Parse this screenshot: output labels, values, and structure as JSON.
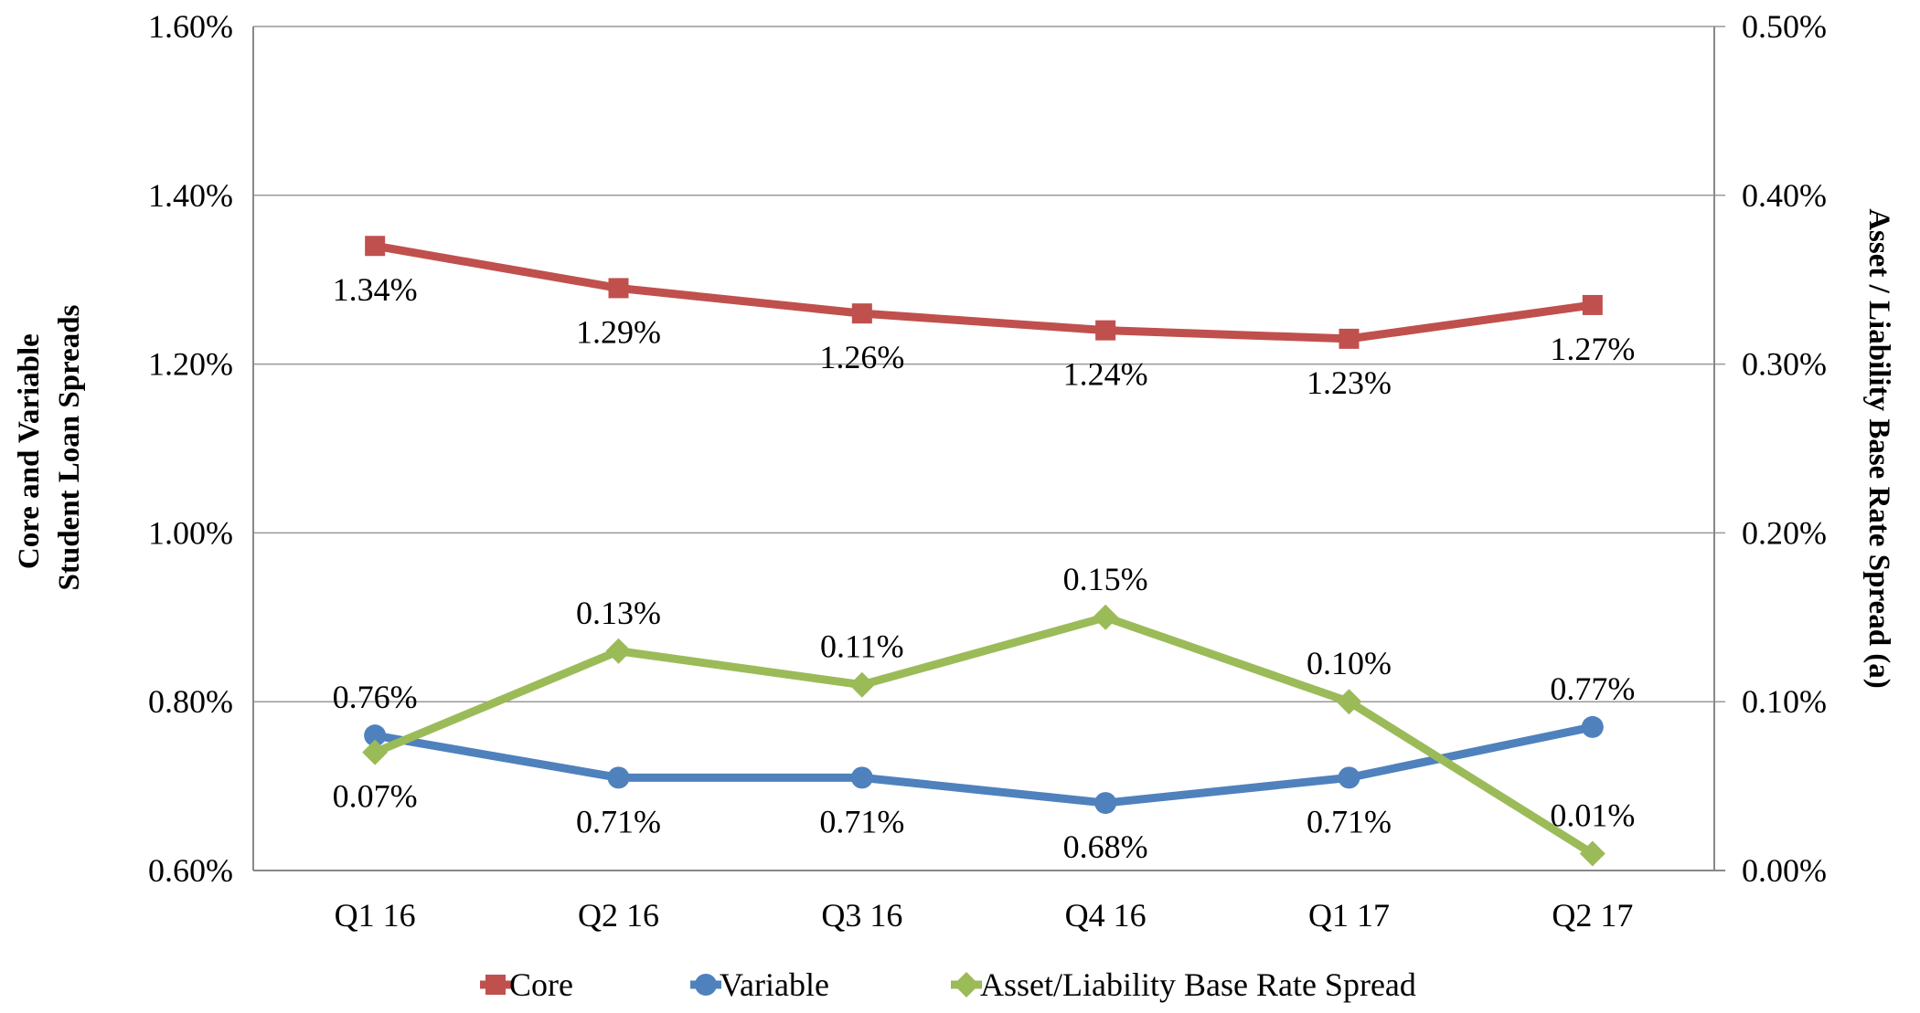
{
  "chart_data": {
    "type": "line",
    "categories": [
      "Q1 16",
      "Q2 16",
      "Q3 16",
      "Q4 16",
      "Q1 17",
      "Q2 17"
    ],
    "y_left": {
      "label_lines": [
        "Core and Variable",
        "Student Loan Spreads"
      ],
      "range": [
        0.6,
        1.6
      ],
      "ticks": [
        "0.60%",
        "0.80%",
        "1.00%",
        "1.20%",
        "1.40%",
        "1.60%"
      ]
    },
    "y_right": {
      "label": "Asset / Liability Base Rate Spread (a)",
      "range": [
        0.0,
        0.5
      ],
      "ticks": [
        "0.00%",
        "0.10%",
        "0.20%",
        "0.30%",
        "0.40%",
        "0.50%"
      ]
    },
    "grid": true,
    "legend_position": "bottom",
    "series": [
      {
        "name": "Core",
        "axis": "left",
        "color": "#c0504d",
        "marker": "square",
        "values": [
          1.34,
          1.29,
          1.26,
          1.24,
          1.23,
          1.27
        ],
        "labels": [
          "1.34%",
          "1.29%",
          "1.26%",
          "1.24%",
          "1.23%",
          "1.27%"
        ],
        "label_side": [
          "below",
          "below",
          "below",
          "below",
          "below",
          "below"
        ]
      },
      {
        "name": "Variable",
        "axis": "left",
        "color": "#4f81bd",
        "marker": "circle",
        "values": [
          0.76,
          0.71,
          0.71,
          0.68,
          0.71,
          0.77
        ],
        "labels": [
          "0.76%",
          "0.71%",
          "0.71%",
          "0.68%",
          "0.71%",
          "0.77%"
        ],
        "label_side": [
          "above",
          "below",
          "below",
          "below",
          "below",
          "above"
        ]
      },
      {
        "name": "Asset/Liability Base Rate Spread",
        "axis": "right",
        "color": "#9bbb59",
        "marker": "diamond",
        "values": [
          0.07,
          0.13,
          0.11,
          0.15,
          0.1,
          0.01
        ],
        "labels": [
          "0.07%",
          "0.13%",
          "0.11%",
          "0.15%",
          "0.10%",
          "0.01%"
        ],
        "label_side": [
          "below",
          "above",
          "above",
          "above",
          "above",
          "above"
        ]
      }
    ]
  }
}
